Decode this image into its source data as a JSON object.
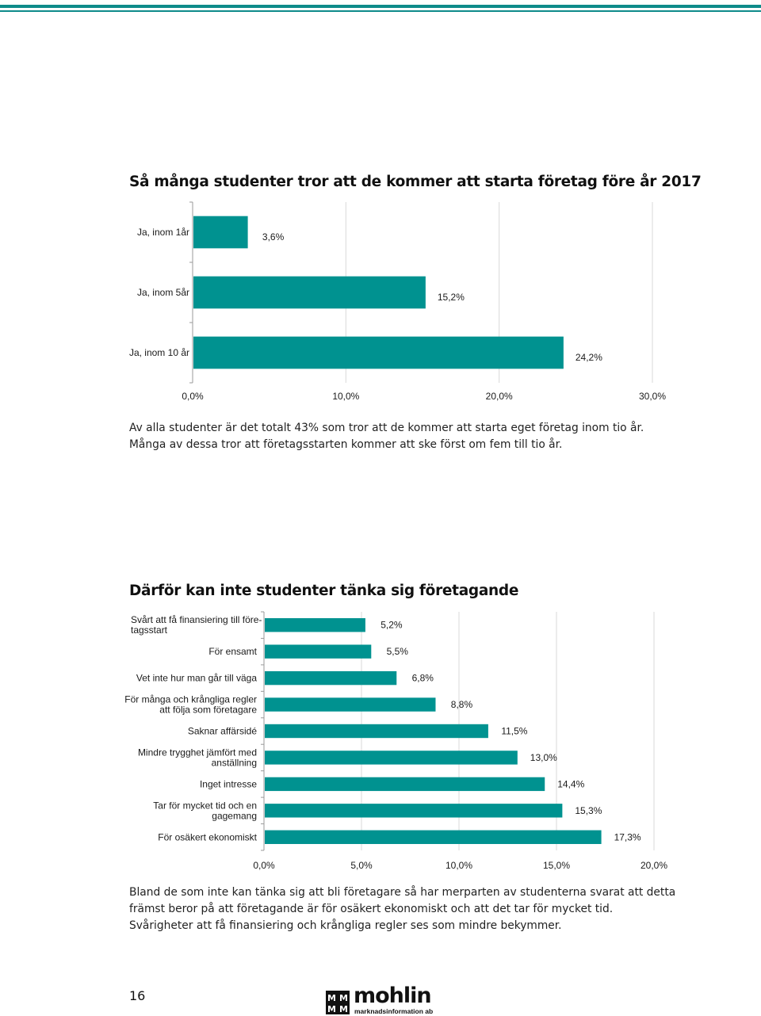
{
  "colors": {
    "accent": "#009290",
    "rule": "#0e8b8a",
    "grid": "#d9d9d9",
    "axis": "#9a9a9a"
  },
  "chart_data": [
    {
      "type": "bar",
      "orientation": "horizontal",
      "title": "Så många studenter tror att de kommer att starta företag före år 2017",
      "categories": [
        "Ja, inom 1år",
        "Ja, inom 5år",
        "Ja, inom 10 år"
      ],
      "values": [
        3.6,
        15.2,
        24.2
      ],
      "value_labels": [
        "3,6%",
        "15,2%",
        "24,2%"
      ],
      "xlim": [
        0,
        30
      ],
      "xticks": [
        "0,0%",
        "10,0%",
        "20,0%",
        "30,0%"
      ],
      "xlabel": "",
      "ylabel": "",
      "grid": true,
      "legend": "none"
    },
    {
      "type": "bar",
      "orientation": "horizontal",
      "title": "Därför kan inte studenter tänka sig företagande",
      "categories": [
        [
          "Svårt att få finansiering till före-",
          "tagsstart"
        ],
        [
          "För ensamt"
        ],
        [
          "Vet inte hur man går till väga"
        ],
        [
          "För många och krångliga regler",
          "att följa som företagare"
        ],
        [
          "Saknar affärsidé"
        ],
        [
          "Mindre trygghet jämfört med",
          "anställning"
        ],
        [
          "Inget intresse"
        ],
        [
          "Tar för mycket tid och en",
          "gagemang"
        ],
        [
          "För osäkert ekonomiskt"
        ]
      ],
      "values": [
        5.2,
        5.5,
        6.8,
        8.8,
        11.5,
        13.0,
        14.4,
        15.3,
        17.3
      ],
      "value_labels": [
        "5,2%",
        "5,5%",
        "6,8%",
        "8,8%",
        "11,5%",
        "13,0%",
        "14,4%",
        "15,3%",
        "17,3%"
      ],
      "xlim": [
        0,
        20
      ],
      "xticks": [
        "0,0%",
        "5,0%",
        "10,0%",
        "15,0%",
        "20,0%"
      ],
      "xlabel": "",
      "ylabel": "",
      "grid": true,
      "legend": "none"
    }
  ],
  "text": {
    "para1_line1": "Av alla studenter är det totalt 43% som tror att de kommer att starta eget företag inom tio år.",
    "para1_line2": "Många av dessa tror att företagsstarten kommer att ske först om fem till tio år.",
    "para2_line1": "Bland de som inte kan tänka sig att bli företagare så har merparten av studenterna svarat att detta",
    "para2_line2": "främst beror på att företagande är för osäkert ekonomiskt och att det tar för mycket tid.",
    "para2_line3": "Svårigheter att få finansiering och krångliga regler ses som mindre bekymmer."
  },
  "footer": {
    "page_number": "16",
    "logo_word": "mohlin",
    "logo_tagline": "marknadsinformation ab",
    "logo_mark_letters": [
      "M",
      "M",
      "M",
      "M"
    ]
  }
}
